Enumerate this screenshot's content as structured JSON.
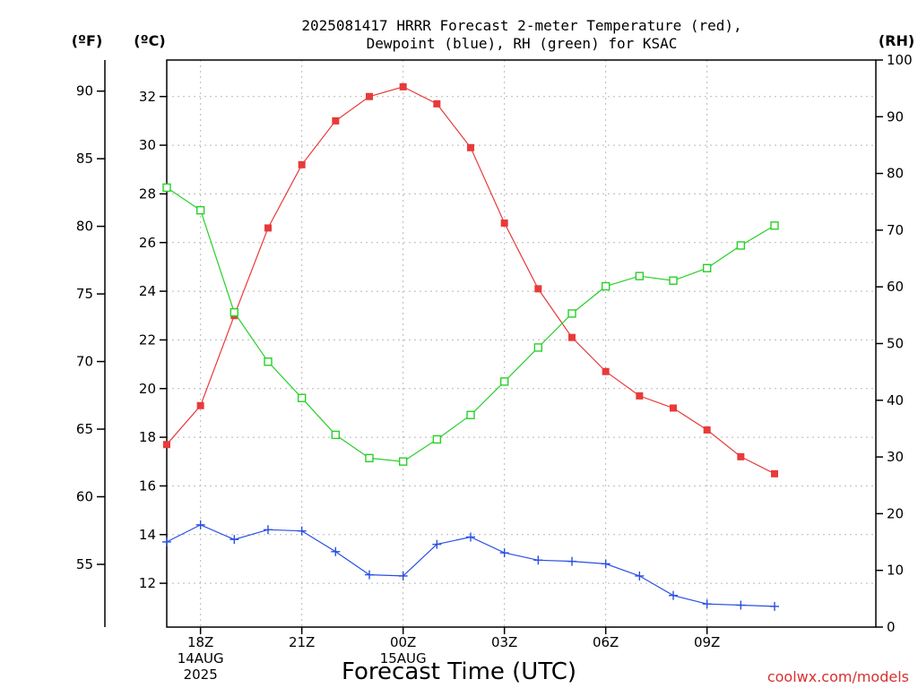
{
  "chart_data": {
    "type": "line",
    "title_line1": "2025081417 HRRR Forecast 2-meter Temperature (red),",
    "title_line2": "Dewpoint (blue), RH (green) for KSAC",
    "xlabel": "Forecast Time (UTC)",
    "credit": "coolwx.com/models",
    "units": {
      "fahrenheit": "(ºF)",
      "celsius": "(ºC)",
      "rh": "(RH)"
    },
    "x_hours": [
      17,
      18,
      19,
      20,
      21,
      22,
      23,
      24,
      25,
      26,
      27,
      28,
      29,
      30,
      31,
      32,
      33,
      34,
      35,
      36,
      37,
      38
    ],
    "xlim": [
      17,
      38
    ],
    "x_ticks": [
      {
        "hour": 18,
        "lines": [
          "18Z",
          "14AUG",
          "2025"
        ]
      },
      {
        "hour": 21,
        "lines": [
          "21Z"
        ]
      },
      {
        "hour": 24,
        "lines": [
          "00Z",
          "15AUG"
        ]
      },
      {
        "hour": 27,
        "lines": [
          "03Z"
        ]
      },
      {
        "hour": 30,
        "lines": [
          "06Z"
        ]
      },
      {
        "hour": 33,
        "lines": [
          "09Z"
        ]
      }
    ],
    "y_celsius": {
      "min": 10.2,
      "max": 33.5,
      "ticks": [
        12,
        14,
        16,
        18,
        20,
        22,
        24,
        26,
        28,
        30,
        32
      ]
    },
    "y_fahrenheit": {
      "ticks": [
        55,
        60,
        65,
        70,
        75,
        80,
        85,
        90
      ]
    },
    "y_rh": {
      "min": 0,
      "max": 100,
      "ticks": [
        0,
        10,
        20,
        30,
        40,
        50,
        60,
        70,
        80,
        90,
        100
      ]
    },
    "series": [
      {
        "name": "Temperature",
        "axis": "celsius",
        "color": "#e83a3a",
        "marker": "filled-square",
        "values": [
          17.7,
          19.3,
          23.0,
          26.6,
          29.2,
          31.0,
          32.0,
          32.4,
          31.7,
          29.9,
          26.8,
          24.1,
          22.1,
          20.7,
          19.7,
          19.2,
          18.3,
          17.2,
          16.5
        ]
      },
      {
        "name": "Dewpoint",
        "axis": "celsius",
        "color": "#2a4fe0",
        "marker": "plus",
        "values": [
          13.7,
          14.4,
          13.8,
          14.2,
          14.15,
          13.3,
          12.35,
          12.3,
          13.6,
          13.9,
          13.25,
          12.95,
          12.9,
          12.8,
          12.3,
          11.5,
          11.15,
          11.1,
          11.05
        ]
      },
      {
        "name": "RH",
        "axis": "rh",
        "color": "#28d028",
        "marker": "open-square",
        "values": [
          77.5,
          73.5,
          55.5,
          46.8,
          40.4,
          33.9,
          29.8,
          29.2,
          33.1,
          37.4,
          43.3,
          49.3,
          55.3,
          60.1,
          61.9,
          61.1,
          63.3,
          67.3,
          70.8
        ]
      }
    ]
  }
}
